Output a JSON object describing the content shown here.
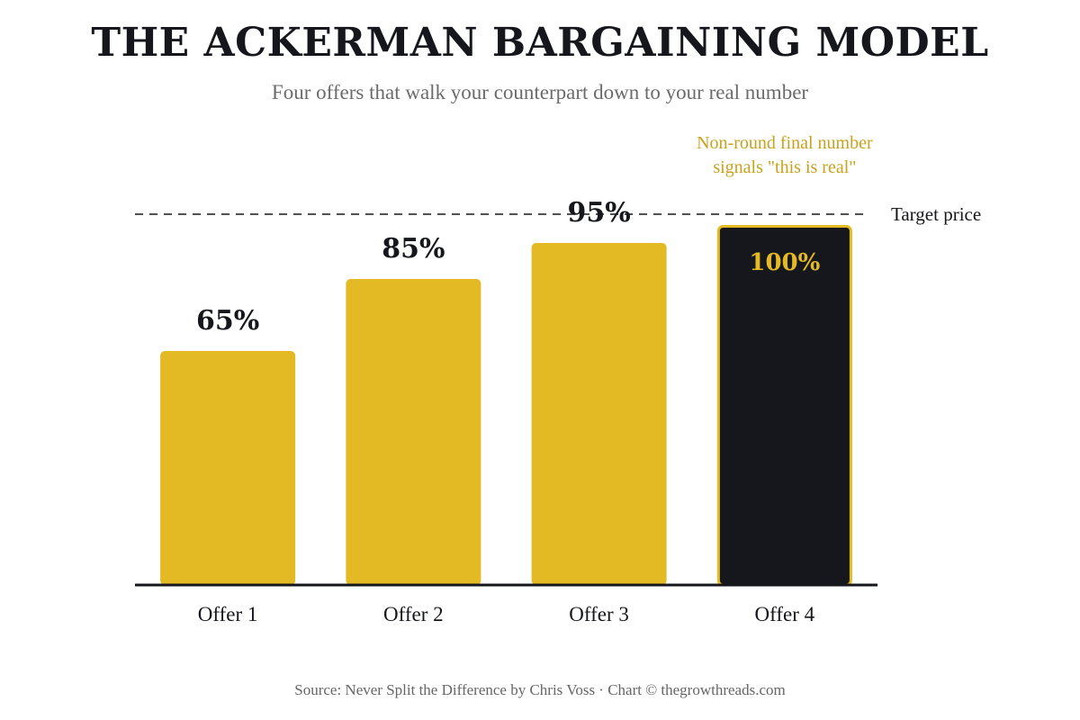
{
  "header": {
    "title": "THE ACKERMAN BARGAINING MODEL",
    "subtitle": "Four offers that walk your counterpart down to your real number"
  },
  "footer": {
    "source": "Source: Never Split the Difference by Chris Voss · Chart © thegrowthreads.com"
  },
  "colors": {
    "bar": "#e3b924",
    "highlight_bar": "#16171c",
    "highlight_border": "#e3b924",
    "highlight_label": "#e3b924",
    "label": "#16171c",
    "annotation": "#c8a21c",
    "reference_line": "#16171c",
    "baseline": "#16171c"
  },
  "chart_data": {
    "type": "bar",
    "categories": [
      "Offer 1",
      "Offer 2",
      "Offer 3",
      "Offer 4"
    ],
    "values": [
      65,
      85,
      95,
      100
    ],
    "value_labels": [
      "65%",
      "85%",
      "95%",
      "100%"
    ],
    "unit": "%",
    "ylim": [
      0,
      100
    ],
    "highlight_index": 3,
    "grid": false,
    "reference_line": {
      "value": 100,
      "label": "Target price",
      "style": "dashed"
    },
    "annotation": {
      "lines": [
        "Non-round final number",
        "signals \"this is real\""
      ],
      "target_category": "Offer 4"
    }
  }
}
